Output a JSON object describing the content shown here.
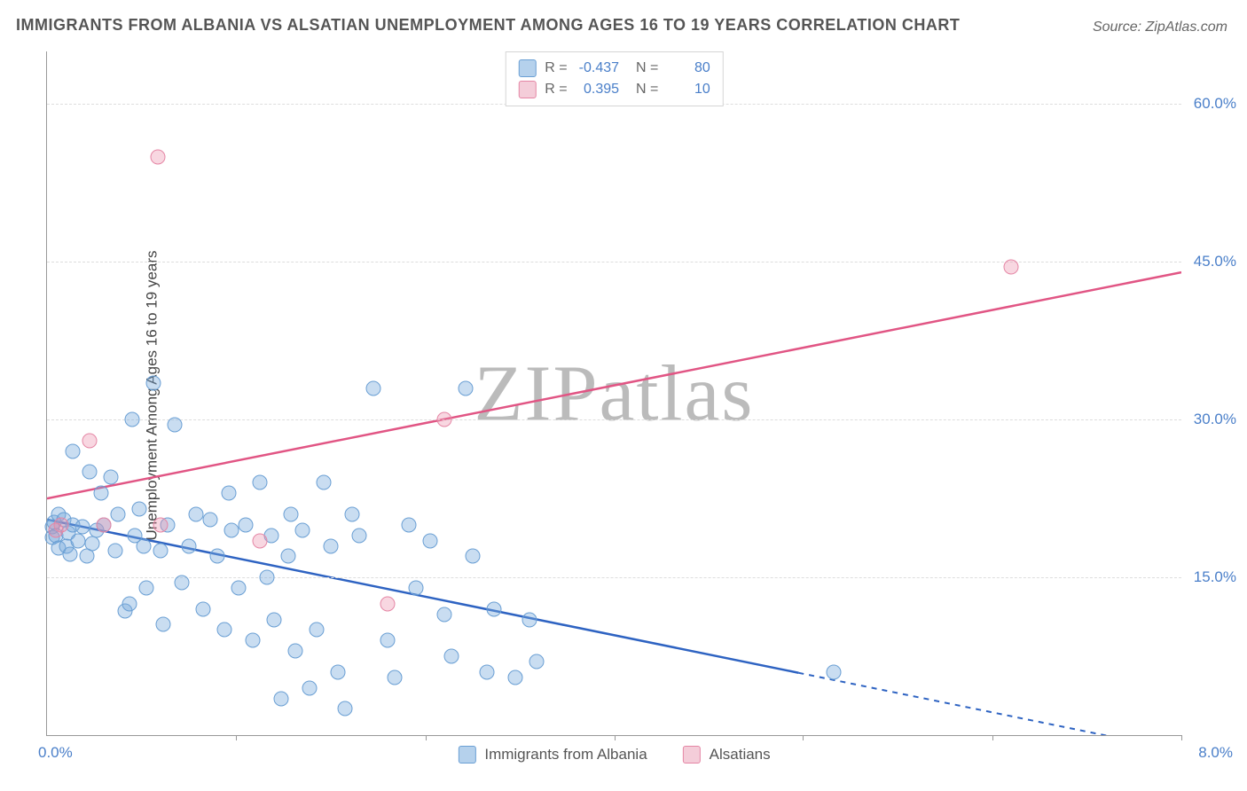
{
  "title": "IMMIGRANTS FROM ALBANIA VS ALSATIAN UNEMPLOYMENT AMONG AGES 16 TO 19 YEARS CORRELATION CHART",
  "source": "Source: ZipAtlas.com",
  "ylabel": "Unemployment Among Ages 16 to 19 years",
  "watermark_a": "ZIP",
  "watermark_b": "atlas",
  "chart": {
    "type": "scatter",
    "xlim": [
      0.0,
      8.0
    ],
    "ylim": [
      0.0,
      65.0
    ],
    "xlim_label_left": "0.0%",
    "xlim_label_right": "8.0%",
    "yticks": [
      15.0,
      30.0,
      45.0,
      60.0
    ],
    "ytick_labels": [
      "15.0%",
      "30.0%",
      "45.0%",
      "60.0%"
    ],
    "xticks": [
      1.33,
      2.67,
      4.0,
      5.33,
      6.67,
      8.0
    ],
    "background_color": "#ffffff",
    "grid_color": "#dddddd",
    "axis_color": "#999999",
    "label_color": "#4a7fc9",
    "series": [
      {
        "name": "Immigrants from Albania",
        "color_fill": "#b5d1ec",
        "color_stroke": "#6a9fd4",
        "R": "-0.437",
        "N": "80",
        "trend": {
          "x1": 0.0,
          "y1": 20.5,
          "x2": 8.0,
          "y2": -1.5,
          "color": "#2e63c2",
          "dash_after_x": 5.3
        },
        "points": [
          [
            0.04,
            19.8
          ],
          [
            0.04,
            18.8
          ],
          [
            0.05,
            20.2
          ],
          [
            0.06,
            19.0
          ],
          [
            0.08,
            17.8
          ],
          [
            0.08,
            21.0
          ],
          [
            0.12,
            20.5
          ],
          [
            0.14,
            18.0
          ],
          [
            0.15,
            19.2
          ],
          [
            0.16,
            17.2
          ],
          [
            0.18,
            27.0
          ],
          [
            0.18,
            20.0
          ],
          [
            0.22,
            18.5
          ],
          [
            0.25,
            19.8
          ],
          [
            0.28,
            17.0
          ],
          [
            0.3,
            25.0
          ],
          [
            0.32,
            18.2
          ],
          [
            0.35,
            19.5
          ],
          [
            0.38,
            23.0
          ],
          [
            0.4,
            20.0
          ],
          [
            0.45,
            24.5
          ],
          [
            0.48,
            17.5
          ],
          [
            0.5,
            21.0
          ],
          [
            0.55,
            11.8
          ],
          [
            0.58,
            12.5
          ],
          [
            0.6,
            30.0
          ],
          [
            0.62,
            19.0
          ],
          [
            0.65,
            21.5
          ],
          [
            0.68,
            18.0
          ],
          [
            0.7,
            14.0
          ],
          [
            0.75,
            33.5
          ],
          [
            0.8,
            17.5
          ],
          [
            0.82,
            10.5
          ],
          [
            0.85,
            20.0
          ],
          [
            0.9,
            29.5
          ],
          [
            0.95,
            14.5
          ],
          [
            1.0,
            18.0
          ],
          [
            1.05,
            21.0
          ],
          [
            1.1,
            12.0
          ],
          [
            1.15,
            20.5
          ],
          [
            1.2,
            17.0
          ],
          [
            1.25,
            10.0
          ],
          [
            1.28,
            23.0
          ],
          [
            1.3,
            19.5
          ],
          [
            1.35,
            14.0
          ],
          [
            1.4,
            20.0
          ],
          [
            1.45,
            9.0
          ],
          [
            1.5,
            24.0
          ],
          [
            1.55,
            15.0
          ],
          [
            1.58,
            19.0
          ],
          [
            1.6,
            11.0
          ],
          [
            1.65,
            3.5
          ],
          [
            1.7,
            17.0
          ],
          [
            1.72,
            21.0
          ],
          [
            1.75,
            8.0
          ],
          [
            1.8,
            19.5
          ],
          [
            1.85,
            4.5
          ],
          [
            1.9,
            10.0
          ],
          [
            1.95,
            24.0
          ],
          [
            2.0,
            18.0
          ],
          [
            2.05,
            6.0
          ],
          [
            2.1,
            2.5
          ],
          [
            2.15,
            21.0
          ],
          [
            2.2,
            19.0
          ],
          [
            2.3,
            33.0
          ],
          [
            2.4,
            9.0
          ],
          [
            2.45,
            5.5
          ],
          [
            2.55,
            20.0
          ],
          [
            2.6,
            14.0
          ],
          [
            2.7,
            18.5
          ],
          [
            2.8,
            11.5
          ],
          [
            2.85,
            7.5
          ],
          [
            2.95,
            33.0
          ],
          [
            3.0,
            17.0
          ],
          [
            3.1,
            6.0
          ],
          [
            3.15,
            12.0
          ],
          [
            3.3,
            5.5
          ],
          [
            3.4,
            11.0
          ],
          [
            3.45,
            7.0
          ],
          [
            5.55,
            6.0
          ]
        ]
      },
      {
        "name": "Alsatians",
        "color_fill": "#f4cdd9",
        "color_stroke": "#e586a5",
        "R": "0.395",
        "N": "10",
        "trend": {
          "x1": 0.0,
          "y1": 22.5,
          "x2": 8.0,
          "y2": 44.0,
          "color": "#e15584",
          "dash_after_x": 8.0
        },
        "points": [
          [
            0.06,
            19.5
          ],
          [
            0.1,
            20.0
          ],
          [
            0.3,
            28.0
          ],
          [
            0.4,
            20.0
          ],
          [
            0.78,
            55.0
          ],
          [
            0.8,
            20.0
          ],
          [
            1.5,
            18.5
          ],
          [
            2.4,
            12.5
          ],
          [
            2.8,
            30.0
          ],
          [
            6.8,
            44.5
          ]
        ]
      }
    ],
    "legend_bottom": [
      {
        "label": "Immigrants from Albania",
        "swatch": "blue"
      },
      {
        "label": "Alsatians",
        "swatch": "pink"
      }
    ]
  }
}
